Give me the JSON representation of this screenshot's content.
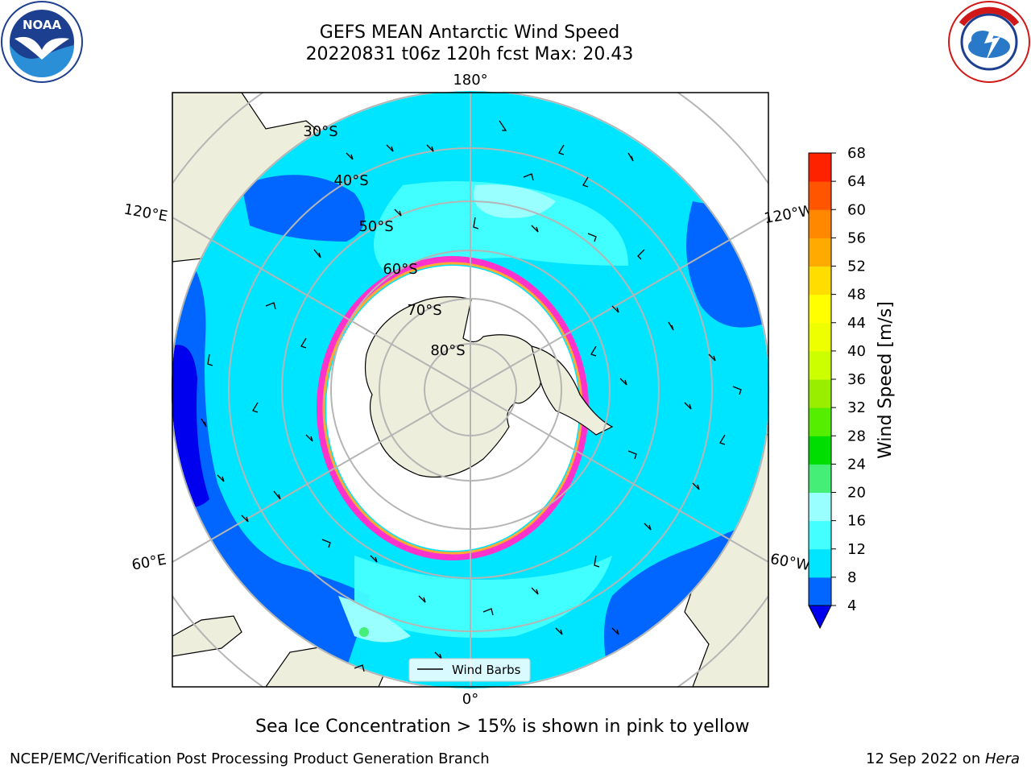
{
  "title": {
    "line1": "GEFS MEAN Antarctic Wind Speed",
    "line2": "20220831 t06z 120h fcst   Max: 20.43"
  },
  "map": {
    "projection": "south-polar-stereographic",
    "lon_labels": {
      "top": "180°",
      "upper_left": "120°E",
      "upper_right": "120°W",
      "lower_left": "60°E",
      "lower_right": "60°W",
      "bottom": "0°"
    },
    "lat_labels": [
      "30°S",
      "40°S",
      "50°S",
      "60°S",
      "70°S",
      "80°S"
    ],
    "legend": {
      "label": "Wind Barbs"
    },
    "colors": {
      "land": "#eeeedd",
      "sea_ice_edge": "#ff33cc",
      "sea_ice_inner": "#ffaa33",
      "grid": "#b5b5b5"
    }
  },
  "colorbar": {
    "label": "Wind Speed [m/s]",
    "ticks": [
      "4",
      "8",
      "12",
      "16",
      "20",
      "24",
      "28",
      "32",
      "36",
      "40",
      "44",
      "48",
      "52",
      "56",
      "60",
      "64",
      "68"
    ],
    "colors": [
      "#0066ff",
      "#00e5ff",
      "#44ffff",
      "#99ffff",
      "#44ee77",
      "#00dd00",
      "#55ee00",
      "#99ee00",
      "#ccff00",
      "#eeff00",
      "#ffff00",
      "#ffdd00",
      "#ffaa00",
      "#ff8800",
      "#ff5500",
      "#ff2200"
    ],
    "under_color": "#0000ee"
  },
  "logos": {
    "left": "NOAA",
    "right": "NATIONAL WEATHER SERVICE"
  },
  "notes": {
    "sea_ice": "Sea Ice Concentration > 15% is shown in pink to yellow",
    "footer_left": "NCEP/EMC/Verification Post Processing Product Generation Branch",
    "footer_date": "12 Sep 2022 on ",
    "footer_machine": "Hera"
  }
}
